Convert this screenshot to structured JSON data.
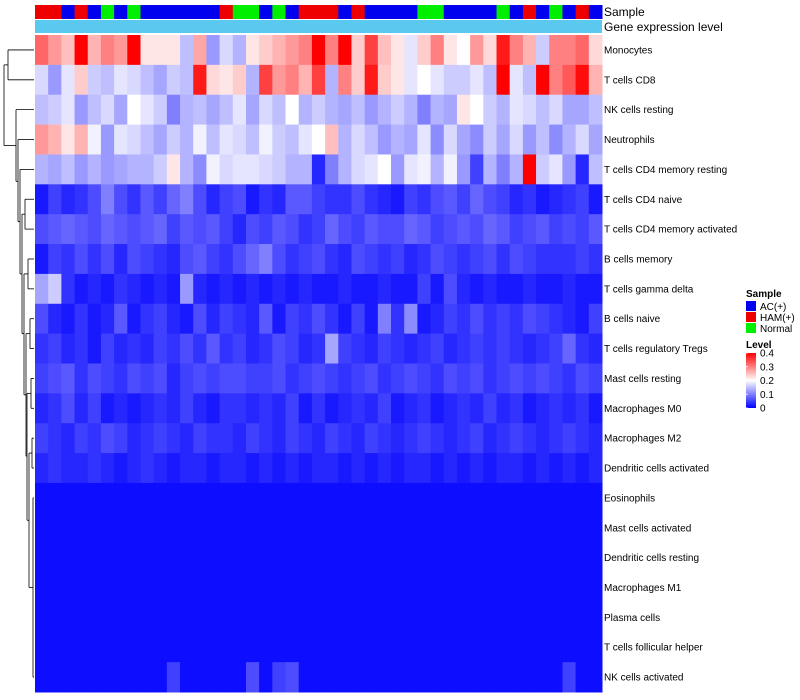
{
  "chart_data": {
    "type": "heatmap",
    "annotation_labels": {
      "sample": "Sample",
      "expression": "Gene expression level"
    },
    "sample_groups": [
      "HAM",
      "HAM",
      "AC",
      "HAM",
      "AC",
      "Normal",
      "AC",
      "Normal",
      "AC",
      "AC",
      "AC",
      "AC",
      "AC",
      "AC",
      "HAM",
      "Normal",
      "Normal",
      "AC",
      "Normal",
      "AC",
      "HAM",
      "HAM",
      "HAM",
      "AC",
      "HAM",
      "AC",
      "AC",
      "AC",
      "AC",
      "Normal",
      "Normal",
      "AC",
      "AC",
      "AC",
      "AC",
      "Normal",
      "AC",
      "HAM",
      "AC",
      "Normal",
      "AC",
      "HAM",
      "AC"
    ],
    "rows": [
      "Monocytes",
      "T cells CD8",
      "NK cells resting",
      "Neutrophils",
      "T cells CD4 memory resting",
      "T cells CD4 naive",
      "T cells CD4 memory activated",
      "B cells memory",
      "T cells gamma delta",
      "B cells naive",
      "T cells regulatory  Tregs",
      "Mast cells resting",
      "Macrophages M0",
      "Macrophages M2",
      "Dendritic cells activated",
      "Eosinophils",
      "Mast cells activated",
      "Dendritic cells resting",
      "Macrophages M1",
      "Plasma cells",
      "T cells follicular helper",
      "NK cells activated"
    ],
    "values": [
      [
        0.32,
        0.28,
        0.25,
        0.4,
        0.26,
        0.3,
        0.28,
        0.4,
        0.22,
        0.22,
        0.22,
        0.15,
        0.27,
        0.12,
        0.17,
        0.14,
        0.22,
        0.24,
        0.26,
        0.28,
        0.3,
        0.4,
        0.3,
        0.4,
        0.24,
        0.35,
        0.25,
        0.22,
        0.18,
        0.24,
        0.3,
        0.22,
        0.2,
        0.28,
        0.23,
        0.38,
        0.3,
        0.26,
        0.16,
        0.3,
        0.3,
        0.32,
        0.23
      ],
      [
        0.17,
        0.12,
        0.18,
        0.24,
        0.16,
        0.15,
        0.18,
        0.17,
        0.15,
        0.13,
        0.16,
        0.15,
        0.38,
        0.23,
        0.22,
        0.24,
        0.14,
        0.35,
        0.28,
        0.3,
        0.26,
        0.35,
        0.14,
        0.3,
        0.24,
        0.38,
        0.24,
        0.22,
        0.18,
        0.2,
        0.18,
        0.16,
        0.16,
        0.18,
        0.15,
        0.4,
        0.18,
        0.15,
        0.4,
        0.3,
        0.33,
        0.39,
        0.26
      ],
      [
        0.15,
        0.16,
        0.18,
        0.12,
        0.15,
        0.17,
        0.13,
        0.2,
        0.18,
        0.16,
        0.1,
        0.14,
        0.15,
        0.13,
        0.15,
        0.18,
        0.13,
        0.17,
        0.15,
        0.2,
        0.14,
        0.16,
        0.14,
        0.13,
        0.15,
        0.12,
        0.14,
        0.16,
        0.14,
        0.1,
        0.14,
        0.13,
        0.22,
        0.2,
        0.16,
        0.14,
        0.18,
        0.17,
        0.15,
        0.17,
        0.13,
        0.13,
        0.15
      ],
      [
        0.28,
        0.26,
        0.22,
        0.26,
        0.19,
        0.12,
        0.18,
        0.17,
        0.15,
        0.13,
        0.16,
        0.14,
        0.19,
        0.15,
        0.18,
        0.17,
        0.15,
        0.19,
        0.16,
        0.15,
        0.18,
        0.2,
        0.25,
        0.14,
        0.17,
        0.15,
        0.12,
        0.14,
        0.13,
        0.18,
        0.11,
        0.17,
        0.13,
        0.11,
        0.16,
        0.13,
        0.17,
        0.12,
        0.15,
        0.11,
        0.14,
        0.17,
        0.13
      ],
      [
        0.14,
        0.13,
        0.15,
        0.12,
        0.14,
        0.12,
        0.13,
        0.14,
        0.14,
        0.16,
        0.22,
        0.14,
        0.11,
        0.19,
        0.17,
        0.18,
        0.18,
        0.17,
        0.16,
        0.14,
        0.14,
        0.03,
        0.1,
        0.14,
        0.17,
        0.18,
        0.2,
        0.12,
        0.18,
        0.19,
        0.14,
        0.19,
        0.12,
        0.05,
        0.14,
        0.1,
        0.14,
        0.4,
        0.16,
        0.18,
        0.12,
        0.03,
        0.15
      ],
      [
        0.02,
        0.05,
        0.03,
        0.04,
        0.06,
        0.1,
        0.06,
        0.04,
        0.07,
        0.05,
        0.08,
        0.1,
        0.06,
        0.03,
        0.05,
        0.06,
        0.02,
        0.04,
        0.03,
        0.07,
        0.07,
        0.05,
        0.04,
        0.04,
        0.06,
        0.04,
        0.03,
        0.02,
        0.05,
        0.04,
        0.06,
        0.07,
        0.05,
        0.08,
        0.06,
        0.05,
        0.03,
        0.04,
        0.02,
        0.03,
        0.04,
        0.05,
        0.02
      ],
      [
        0.06,
        0.07,
        0.08,
        0.07,
        0.06,
        0.08,
        0.07,
        0.06,
        0.07,
        0.08,
        0.05,
        0.07,
        0.06,
        0.07,
        0.05,
        0.03,
        0.06,
        0.05,
        0.07,
        0.06,
        0.04,
        0.05,
        0.08,
        0.06,
        0.05,
        0.07,
        0.06,
        0.06,
        0.08,
        0.07,
        0.05,
        0.06,
        0.07,
        0.06,
        0.08,
        0.07,
        0.05,
        0.06,
        0.07,
        0.05,
        0.06,
        0.05,
        0.07
      ],
      [
        0.02,
        0.05,
        0.04,
        0.06,
        0.04,
        0.06,
        0.03,
        0.06,
        0.05,
        0.04,
        0.03,
        0.06,
        0.07,
        0.05,
        0.04,
        0.06,
        0.08,
        0.1,
        0.06,
        0.04,
        0.05,
        0.06,
        0.04,
        0.03,
        0.06,
        0.05,
        0.04,
        0.05,
        0.03,
        0.04,
        0.06,
        0.05,
        0.04,
        0.05,
        0.06,
        0.04,
        0.06,
        0.05,
        0.04,
        0.04,
        0.04,
        0.05,
        0.04
      ],
      [
        0.13,
        0.16,
        0.04,
        0.02,
        0.03,
        0.02,
        0.04,
        0.03,
        0.02,
        0.03,
        0.02,
        0.12,
        0.03,
        0.02,
        0.03,
        0.02,
        0.03,
        0.02,
        0.03,
        0.02,
        0.03,
        0.02,
        0.02,
        0.03,
        0.02,
        0.02,
        0.03,
        0.02,
        0.02,
        0.05,
        0.02,
        0.06,
        0.03,
        0.02,
        0.03,
        0.02,
        0.02,
        0.03,
        0.02,
        0.02,
        0.03,
        0.02,
        0.02
      ],
      [
        0.06,
        0.03,
        0.02,
        0.04,
        0.02,
        0.03,
        0.07,
        0.02,
        0.04,
        0.05,
        0.03,
        0.02,
        0.06,
        0.03,
        0.05,
        0.04,
        0.03,
        0.07,
        0.02,
        0.05,
        0.04,
        0.06,
        0.04,
        0.02,
        0.05,
        0.02,
        0.1,
        0.04,
        0.11,
        0.02,
        0.03,
        0.05,
        0.04,
        0.06,
        0.04,
        0.05,
        0.04,
        0.06,
        0.05,
        0.04,
        0.03,
        0.02,
        0.05
      ],
      [
        0.04,
        0.05,
        0.03,
        0.04,
        0.02,
        0.05,
        0.03,
        0.04,
        0.03,
        0.05,
        0.04,
        0.06,
        0.04,
        0.07,
        0.04,
        0.05,
        0.03,
        0.04,
        0.06,
        0.05,
        0.03,
        0.04,
        0.13,
        0.05,
        0.04,
        0.03,
        0.05,
        0.04,
        0.03,
        0.04,
        0.05,
        0.03,
        0.04,
        0.05,
        0.04,
        0.05,
        0.04,
        0.03,
        0.04,
        0.05,
        0.08,
        0.04,
        0.03
      ],
      [
        0.05,
        0.06,
        0.07,
        0.04,
        0.06,
        0.05,
        0.04,
        0.06,
        0.05,
        0.06,
        0.03,
        0.05,
        0.06,
        0.05,
        0.06,
        0.06,
        0.05,
        0.05,
        0.06,
        0.04,
        0.05,
        0.06,
        0.05,
        0.04,
        0.05,
        0.06,
        0.04,
        0.05,
        0.06,
        0.05,
        0.04,
        0.06,
        0.05,
        0.06,
        0.04,
        0.05,
        0.06,
        0.05,
        0.06,
        0.05,
        0.04,
        0.06,
        0.05
      ],
      [
        0.03,
        0.04,
        0.06,
        0.03,
        0.05,
        0.02,
        0.03,
        0.02,
        0.03,
        0.04,
        0.03,
        0.05,
        0.03,
        0.02,
        0.04,
        0.04,
        0.03,
        0.04,
        0.03,
        0.05,
        0.02,
        0.04,
        0.02,
        0.03,
        0.04,
        0.03,
        0.05,
        0.02,
        0.03,
        0.04,
        0.02,
        0.03,
        0.04,
        0.03,
        0.05,
        0.03,
        0.04,
        0.02,
        0.03,
        0.04,
        0.03,
        0.04,
        0.02
      ],
      [
        0.05,
        0.04,
        0.03,
        0.05,
        0.04,
        0.06,
        0.05,
        0.03,
        0.04,
        0.05,
        0.04,
        0.03,
        0.05,
        0.04,
        0.04,
        0.03,
        0.05,
        0.04,
        0.03,
        0.05,
        0.04,
        0.03,
        0.05,
        0.04,
        0.03,
        0.05,
        0.04,
        0.03,
        0.04,
        0.05,
        0.04,
        0.03,
        0.04,
        0.05,
        0.03,
        0.04,
        0.05,
        0.04,
        0.03,
        0.04,
        0.05,
        0.04,
        0.03
      ],
      [
        0.03,
        0.04,
        0.03,
        0.03,
        0.04,
        0.03,
        0.02,
        0.03,
        0.04,
        0.03,
        0.02,
        0.03,
        0.03,
        0.02,
        0.03,
        0.03,
        0.02,
        0.03,
        0.02,
        0.03,
        0.02,
        0.03,
        0.03,
        0.02,
        0.03,
        0.02,
        0.03,
        0.02,
        0.03,
        0.03,
        0.02,
        0.03,
        0.02,
        0.03,
        0.02,
        0.03,
        0.03,
        0.02,
        0.03,
        0.02,
        0.03,
        0.02,
        0.03
      ],
      [
        0.01,
        0.01,
        0.01,
        0.01,
        0.01,
        0.01,
        0.01,
        0.01,
        0.01,
        0.01,
        0.01,
        0.01,
        0.01,
        0.01,
        0.01,
        0.01,
        0.01,
        0.01,
        0.01,
        0.01,
        0.01,
        0.01,
        0.01,
        0.01,
        0.01,
        0.01,
        0.01,
        0.01,
        0.01,
        0.01,
        0.01,
        0.01,
        0.01,
        0.01,
        0.01,
        0.01,
        0.01,
        0.01,
        0.01,
        0.01,
        0.01,
        0.01,
        0.01
      ],
      [
        0.01,
        0.01,
        0.01,
        0.01,
        0.01,
        0.01,
        0.01,
        0.01,
        0.01,
        0.01,
        0.01,
        0.01,
        0.01,
        0.01,
        0.01,
        0.01,
        0.01,
        0.01,
        0.01,
        0.01,
        0.01,
        0.01,
        0.01,
        0.01,
        0.01,
        0.01,
        0.01,
        0.01,
        0.01,
        0.01,
        0.01,
        0.01,
        0.01,
        0.01,
        0.01,
        0.01,
        0.01,
        0.01,
        0.01,
        0.01,
        0.01,
        0.01,
        0.01
      ],
      [
        0.01,
        0.01,
        0.01,
        0.01,
        0.01,
        0.01,
        0.01,
        0.01,
        0.01,
        0.01,
        0.01,
        0.01,
        0.01,
        0.01,
        0.01,
        0.01,
        0.01,
        0.01,
        0.01,
        0.01,
        0.01,
        0.01,
        0.01,
        0.01,
        0.01,
        0.01,
        0.01,
        0.01,
        0.01,
        0.01,
        0.01,
        0.01,
        0.01,
        0.01,
        0.01,
        0.01,
        0.01,
        0.01,
        0.01,
        0.01,
        0.01,
        0.01,
        0.01
      ],
      [
        0.01,
        0.01,
        0.01,
        0.01,
        0.01,
        0.01,
        0.01,
        0.01,
        0.01,
        0.01,
        0.01,
        0.01,
        0.01,
        0.01,
        0.01,
        0.01,
        0.01,
        0.01,
        0.01,
        0.01,
        0.01,
        0.01,
        0.01,
        0.01,
        0.01,
        0.01,
        0.01,
        0.01,
        0.01,
        0.01,
        0.01,
        0.01,
        0.01,
        0.01,
        0.01,
        0.01,
        0.01,
        0.01,
        0.01,
        0.01,
        0.01,
        0.01,
        0.01
      ],
      [
        0.01,
        0.01,
        0.01,
        0.01,
        0.01,
        0.01,
        0.01,
        0.01,
        0.01,
        0.01,
        0.01,
        0.01,
        0.01,
        0.01,
        0.01,
        0.01,
        0.01,
        0.01,
        0.01,
        0.01,
        0.01,
        0.01,
        0.01,
        0.01,
        0.01,
        0.01,
        0.01,
        0.01,
        0.01,
        0.01,
        0.01,
        0.01,
        0.01,
        0.01,
        0.01,
        0.01,
        0.01,
        0.01,
        0.01,
        0.01,
        0.01,
        0.01,
        0.01
      ],
      [
        0.01,
        0.01,
        0.01,
        0.01,
        0.01,
        0.01,
        0.01,
        0.01,
        0.01,
        0.01,
        0.01,
        0.01,
        0.01,
        0.01,
        0.01,
        0.01,
        0.01,
        0.01,
        0.01,
        0.01,
        0.01,
        0.01,
        0.01,
        0.01,
        0.01,
        0.01,
        0.01,
        0.01,
        0.01,
        0.01,
        0.01,
        0.01,
        0.01,
        0.01,
        0.01,
        0.01,
        0.01,
        0.01,
        0.01,
        0.01,
        0.01,
        0.01,
        0.01
      ],
      [
        0.01,
        0.01,
        0.01,
        0.01,
        0.01,
        0.01,
        0.01,
        0.01,
        0.01,
        0.01,
        0.05,
        0.01,
        0.01,
        0.01,
        0.01,
        0.01,
        0.06,
        0.01,
        0.05,
        0.06,
        0.01,
        0.01,
        0.01,
        0.01,
        0.01,
        0.01,
        0.01,
        0.01,
        0.01,
        0.01,
        0.01,
        0.01,
        0.01,
        0.01,
        0.01,
        0.01,
        0.01,
        0.01,
        0.01,
        0.01,
        0.05,
        0.01,
        0.01
      ]
    ],
    "legend": {
      "sample_title": "Sample",
      "sample_items": [
        {
          "key": "AC",
          "label": "AC(+)",
          "color": "#0000ee"
        },
        {
          "key": "HAM",
          "label": "HAM(+)",
          "color": "#ee0000"
        },
        {
          "key": "Normal",
          "label": "Normal",
          "color": "#00ee00"
        }
      ],
      "level_title": "Level",
      "level_ticks": [
        "0.4",
        "0.3",
        "0.2",
        "0.1",
        "0"
      ],
      "level_range": [
        0,
        0.4
      ]
    },
    "colors": {
      "low": "#0000ff",
      "mid": "#ffffff",
      "high": "#ff0000",
      "expression_bar": "#5bc8f0"
    }
  }
}
